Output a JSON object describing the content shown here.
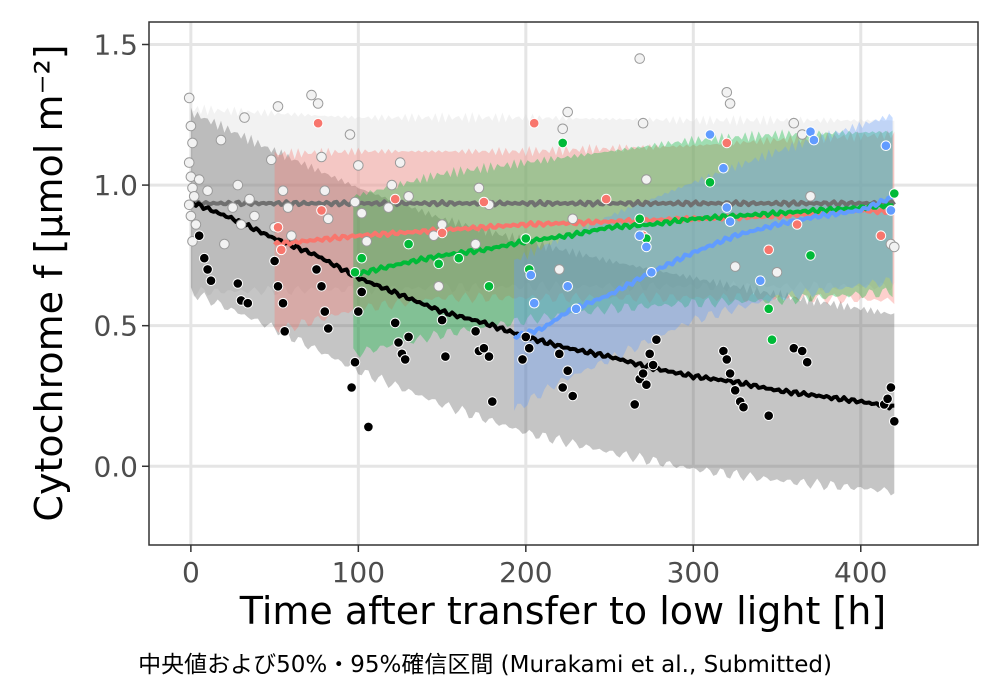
{
  "chart_data": {
    "type": "scatter",
    "title": "",
    "xlabel": "Time after transfer to low light [h]",
    "ylabel": "Cytochrome f [μmol m⁻²]",
    "caption": "中央値および50%・95%確信区間 (Murakami et al., Submitted)",
    "xlim": [
      -25,
      470
    ],
    "ylim": [
      -0.28,
      1.58
    ],
    "x_ticks": [
      0,
      100,
      200,
      300,
      400
    ],
    "x_tick_labels": [
      "0",
      "100",
      "200",
      "300",
      "400"
    ],
    "y_ticks": [
      0.0,
      0.5,
      1.0,
      1.5
    ],
    "y_tick_labels": [
      "0.0",
      "0.5",
      "1.0",
      "1.5"
    ],
    "grid": true,
    "legend": "none",
    "series": [
      {
        "color": "#d9d9d9",
        "median_curve": [
          [
            0,
            0.935
          ],
          [
            100,
            0.935
          ],
          [
            200,
            0.935
          ],
          [
            300,
            0.935
          ],
          [
            420,
            0.935
          ]
        ],
        "band_95": [
          [
            0,
            0.62,
            1.27
          ],
          [
            100,
            0.63,
            1.24
          ],
          [
            200,
            0.64,
            1.24
          ],
          [
            300,
            0.64,
            1.23
          ],
          [
            420,
            0.64,
            1.23
          ]
        ],
        "points": [
          [
            -1,
            1.31
          ],
          [
            0,
            1.21
          ],
          [
            1,
            1.15
          ],
          [
            -1,
            1.08
          ],
          [
            0,
            1.03
          ],
          [
            1,
            0.99
          ],
          [
            2,
            0.96
          ],
          [
            -1,
            0.93
          ],
          [
            0,
            0.89
          ],
          [
            3,
            0.86
          ],
          [
            1,
            0.8
          ],
          [
            5,
            1.02
          ],
          [
            10,
            0.98
          ],
          [
            18,
            1.16
          ],
          [
            20,
            0.79
          ],
          [
            25,
            0.92
          ],
          [
            28,
            1.0
          ],
          [
            30,
            0.86
          ],
          [
            32,
            1.24
          ],
          [
            35,
            0.95
          ],
          [
            38,
            0.89
          ],
          [
            48,
            1.09
          ],
          [
            50,
            0.85
          ],
          [
            52,
            1.28
          ],
          [
            55,
            0.98
          ],
          [
            58,
            0.92
          ],
          [
            60,
            0.82
          ],
          [
            72,
            1.32
          ],
          [
            76,
            1.29
          ],
          [
            78,
            1.1
          ],
          [
            80,
            0.98
          ],
          [
            82,
            0.88
          ],
          [
            95,
            1.18
          ],
          [
            98,
            0.94
          ],
          [
            100,
            1.07
          ],
          [
            102,
            0.9
          ],
          [
            105,
            0.8
          ],
          [
            118,
            0.92
          ],
          [
            120,
            1.0
          ],
          [
            125,
            1.08
          ],
          [
            130,
            0.96
          ],
          [
            145,
            0.82
          ],
          [
            148,
            0.64
          ],
          [
            150,
            0.86
          ],
          [
            170,
            0.79
          ],
          [
            172,
            0.99
          ],
          [
            178,
            0.93
          ],
          [
            220,
            0.7
          ],
          [
            222,
            1.2
          ],
          [
            225,
            1.26
          ],
          [
            228,
            0.88
          ],
          [
            268,
            1.45
          ],
          [
            270,
            1.22
          ],
          [
            272,
            1.02
          ],
          [
            320,
            1.33
          ],
          [
            322,
            1.29
          ],
          [
            325,
            0.71
          ],
          [
            350,
            0.69
          ],
          [
            360,
            1.22
          ],
          [
            365,
            1.18
          ],
          [
            370,
            0.96
          ],
          [
            418,
            0.79
          ],
          [
            420,
            0.78
          ]
        ]
      },
      {
        "color": "#000000",
        "median_curve": [
          [
            0,
            0.94
          ],
          [
            25,
            0.88
          ],
          [
            50,
            0.81
          ],
          [
            75,
            0.75
          ],
          [
            100,
            0.67
          ],
          [
            125,
            0.61
          ],
          [
            150,
            0.55
          ],
          [
            175,
            0.51
          ],
          [
            200,
            0.46
          ],
          [
            225,
            0.42
          ],
          [
            250,
            0.39
          ],
          [
            275,
            0.35
          ],
          [
            300,
            0.32
          ],
          [
            325,
            0.3
          ],
          [
            350,
            0.27
          ],
          [
            375,
            0.25
          ],
          [
            400,
            0.23
          ],
          [
            420,
            0.21
          ]
        ],
        "band_95": [
          [
            0,
            0.62,
            1.26
          ],
          [
            50,
            0.49,
            1.12
          ],
          [
            100,
            0.34,
            0.99
          ],
          [
            150,
            0.22,
            0.88
          ],
          [
            200,
            0.12,
            0.8
          ],
          [
            250,
            0.05,
            0.73
          ],
          [
            300,
            -0.01,
            0.67
          ],
          [
            350,
            -0.05,
            0.61
          ],
          [
            420,
            -0.09,
            0.54
          ]
        ],
        "points": [
          [
            5,
            0.82
          ],
          [
            8,
            0.74
          ],
          [
            10,
            0.7
          ],
          [
            12,
            0.66
          ],
          [
            28,
            0.65
          ],
          [
            30,
            0.59
          ],
          [
            34,
            0.58
          ],
          [
            50,
            0.73
          ],
          [
            52,
            0.64
          ],
          [
            55,
            0.58
          ],
          [
            56,
            0.48
          ],
          [
            75,
            0.7
          ],
          [
            78,
            0.64
          ],
          [
            80,
            0.55
          ],
          [
            82,
            0.49
          ],
          [
            96,
            0.28
          ],
          [
            98,
            0.37
          ],
          [
            100,
            0.55
          ],
          [
            102,
            0.62
          ],
          [
            106,
            0.14
          ],
          [
            122,
            0.51
          ],
          [
            124,
            0.44
          ],
          [
            126,
            0.4
          ],
          [
            128,
            0.38
          ],
          [
            130,
            0.46
          ],
          [
            150,
            0.52
          ],
          [
            152,
            0.39
          ],
          [
            170,
            0.48
          ],
          [
            172,
            0.41
          ],
          [
            175,
            0.42
          ],
          [
            178,
            0.39
          ],
          [
            180,
            0.23
          ],
          [
            198,
            0.38
          ],
          [
            200,
            0.46
          ],
          [
            202,
            0.42
          ],
          [
            220,
            0.4
          ],
          [
            222,
            0.28
          ],
          [
            225,
            0.34
          ],
          [
            228,
            0.25
          ],
          [
            268,
            0.31
          ],
          [
            270,
            0.33
          ],
          [
            272,
            0.29
          ],
          [
            274,
            0.4
          ],
          [
            276,
            0.36
          ],
          [
            278,
            0.45
          ],
          [
            265,
            0.22
          ],
          [
            318,
            0.41
          ],
          [
            320,
            0.38
          ],
          [
            322,
            0.33
          ],
          [
            325,
            0.27
          ],
          [
            328,
            0.23
          ],
          [
            330,
            0.21
          ],
          [
            345,
            0.18
          ],
          [
            360,
            0.42
          ],
          [
            365,
            0.41
          ],
          [
            368,
            0.37
          ],
          [
            414,
            0.22
          ],
          [
            416,
            0.24
          ],
          [
            418,
            0.28
          ],
          [
            420,
            0.16
          ]
        ]
      },
      {
        "color": "#f8766d",
        "median_curve": [
          [
            50,
            0.79
          ],
          [
            100,
            0.82
          ],
          [
            150,
            0.84
          ],
          [
            200,
            0.86
          ],
          [
            250,
            0.87
          ],
          [
            300,
            0.88
          ],
          [
            350,
            0.89
          ],
          [
            400,
            0.91
          ],
          [
            420,
            0.905
          ]
        ],
        "band_95": [
          [
            50,
            0.48,
            1.11
          ],
          [
            100,
            0.56,
            1.12
          ],
          [
            150,
            0.6,
            1.12
          ],
          [
            200,
            0.6,
            1.12
          ],
          [
            250,
            0.6,
            1.13
          ],
          [
            300,
            0.6,
            1.14
          ],
          [
            350,
            0.6,
            1.16
          ],
          [
            420,
            0.59,
            1.18
          ]
        ],
        "points": [
          [
            52,
            0.85
          ],
          [
            54,
            0.77
          ],
          [
            76,
            1.22
          ],
          [
            78,
            0.91
          ],
          [
            122,
            0.95
          ],
          [
            150,
            0.83
          ],
          [
            175,
            0.94
          ],
          [
            205,
            1.22
          ],
          [
            248,
            0.95
          ],
          [
            270,
            0.82
          ],
          [
            320,
            1.15
          ],
          [
            345,
            0.77
          ],
          [
            362,
            0.86
          ],
          [
            412,
            0.82
          ]
        ]
      },
      {
        "color": "#00ba38",
        "median_curve": [
          [
            97,
            0.68
          ],
          [
            125,
            0.72
          ],
          [
            150,
            0.75
          ],
          [
            175,
            0.77
          ],
          [
            200,
            0.8
          ],
          [
            225,
            0.82
          ],
          [
            250,
            0.85
          ],
          [
            275,
            0.86
          ],
          [
            300,
            0.88
          ],
          [
            325,
            0.89
          ],
          [
            350,
            0.9
          ],
          [
            375,
            0.91
          ],
          [
            400,
            0.92
          ],
          [
            420,
            0.93
          ]
        ],
        "band_95": [
          [
            97,
            0.4,
            0.96
          ],
          [
            150,
            0.47,
            1.04
          ],
          [
            200,
            0.52,
            1.08
          ],
          [
            250,
            0.56,
            1.12
          ],
          [
            300,
            0.58,
            1.16
          ],
          [
            350,
            0.59,
            1.18
          ],
          [
            420,
            0.62,
            1.19
          ]
        ],
        "points": [
          [
            98,
            0.69
          ],
          [
            102,
            0.74
          ],
          [
            130,
            0.79
          ],
          [
            148,
            0.72
          ],
          [
            160,
            0.74
          ],
          [
            178,
            0.64
          ],
          [
            200,
            0.81
          ],
          [
            202,
            0.7
          ],
          [
            222,
            1.15
          ],
          [
            268,
            0.88
          ],
          [
            272,
            0.81
          ],
          [
            310,
            1.01
          ],
          [
            345,
            0.56
          ],
          [
            347,
            0.45
          ],
          [
            370,
            0.75
          ],
          [
            420,
            0.97
          ]
        ]
      },
      {
        "color": "#619cff",
        "median_curve": [
          [
            193,
            0.46
          ],
          [
            210,
            0.49
          ],
          [
            225,
            0.55
          ],
          [
            250,
            0.61
          ],
          [
            275,
            0.69
          ],
          [
            300,
            0.76
          ],
          [
            325,
            0.82
          ],
          [
            350,
            0.86
          ],
          [
            375,
            0.89
          ],
          [
            400,
            0.91
          ],
          [
            420,
            0.96
          ]
        ],
        "band_95": [
          [
            193,
            0.2,
            0.73
          ],
          [
            220,
            0.3,
            0.81
          ],
          [
            250,
            0.38,
            0.89
          ],
          [
            300,
            0.52,
            1.01
          ],
          [
            350,
            0.6,
            1.12
          ],
          [
            420,
            0.66,
            1.25
          ]
        ],
        "points": [
          [
            203,
            0.68
          ],
          [
            205,
            0.58
          ],
          [
            225,
            0.64
          ],
          [
            230,
            0.56
          ],
          [
            268,
            0.82
          ],
          [
            272,
            0.78
          ],
          [
            275,
            0.69
          ],
          [
            310,
            1.18
          ],
          [
            318,
            1.06
          ],
          [
            320,
            0.92
          ],
          [
            322,
            0.87
          ],
          [
            340,
            0.66
          ],
          [
            370,
            1.19
          ],
          [
            372,
            1.16
          ],
          [
            415,
            1.14
          ],
          [
            418,
            0.91
          ]
        ]
      }
    ]
  }
}
